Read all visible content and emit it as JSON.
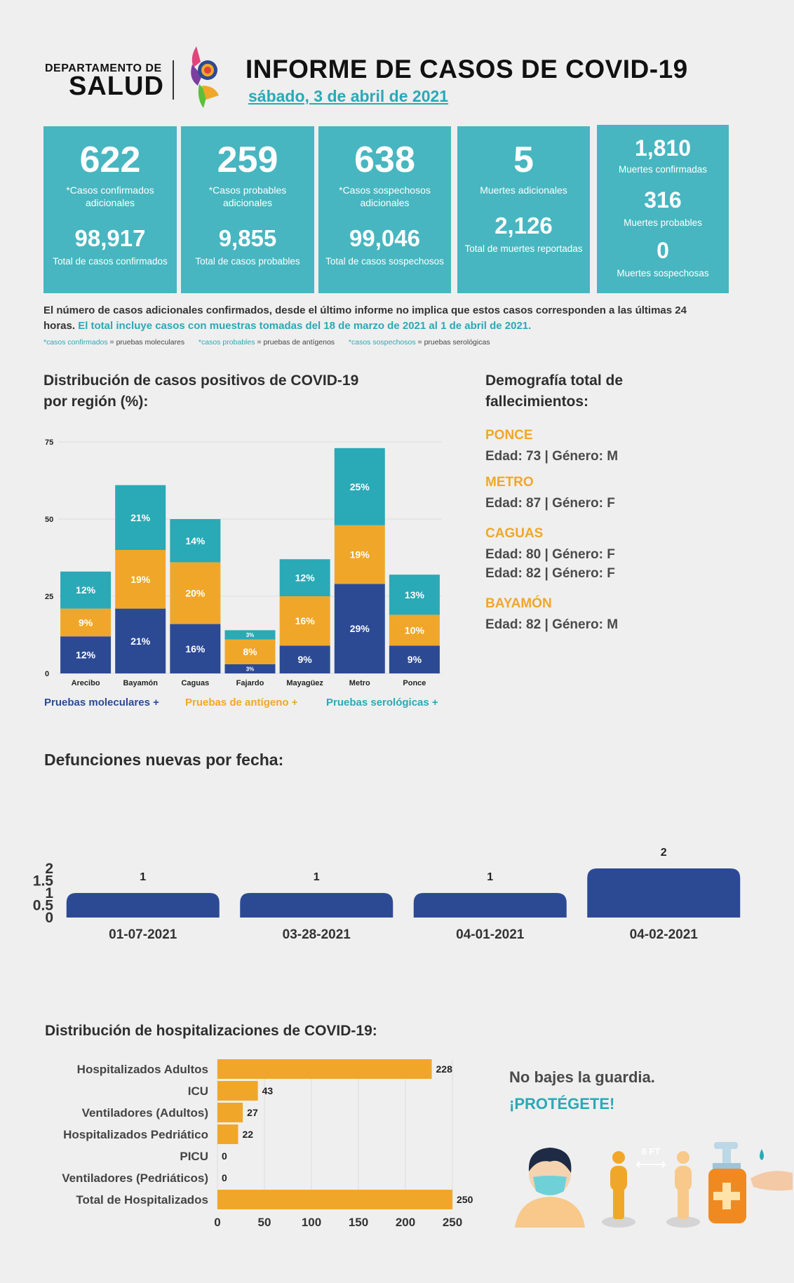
{
  "header": {
    "dept_line1": "DEPARTAMENTO DE",
    "dept_line2": "SALUD",
    "title": "INFORME DE CASOS DE COVID-19",
    "date": "sábado, 3 de abril de 2021"
  },
  "cards": [
    {
      "top_value": "622",
      "top_label": "*Casos confirmados adicionales",
      "bottom_value": "98,917",
      "bottom_label": "Total de casos confirmados"
    },
    {
      "top_value": "259",
      "top_label": "*Casos probables adicionales",
      "bottom_value": "9,855",
      "bottom_label": "Total de casos probables"
    },
    {
      "top_value": "638",
      "top_label": "*Casos sospechosos adicionales",
      "bottom_value": "99,046",
      "bottom_label": "Total de casos sospechosos"
    },
    {
      "top_value": "5",
      "top_label": "Muertes adicionales",
      "bottom_value": "2,126",
      "bottom_label": "Total de muertes reportadas"
    }
  ],
  "deaths_card": [
    {
      "value": "1,810",
      "label": "Muertes confirmadas"
    },
    {
      "value": "316",
      "label": "Muertes probables"
    },
    {
      "value": "0",
      "label": "Muertes sospechosas"
    }
  ],
  "note": {
    "text": "El número de casos adicionales confirmados, desde el último informe no implica que estos casos corresponden a las últimas 24 horas.",
    "highlight": "El total incluye casos con muestras tomadas del 18 de marzo de 2021 al 1 de abril de 2021."
  },
  "legend_note": [
    {
      "key": "*casos confirmados",
      "value": "= pruebas moleculares"
    },
    {
      "key": "*casos probables",
      "value": "= pruebas de antígenos"
    },
    {
      "key": "*casos sospechosos",
      "value": "= pruebas serológicas"
    }
  ],
  "colors": {
    "molecular": "#2c4a94",
    "antigen": "#f0a729",
    "serologic": "#2aa9b6",
    "card": "#47b6c0",
    "hosp": "#f0a729"
  },
  "region_chart": {
    "title_line1": "Distribución de casos positivos de COVID-19",
    "title_line2": "por región (%):",
    "legend": [
      "Pruebas moleculares +",
      "Pruebas de antígeno +",
      "Pruebas serológicas +"
    ]
  },
  "demography": {
    "title_line1": "Demografía total de",
    "title_line2": "fallecimientos:",
    "groups": [
      {
        "region": "PONCE",
        "lines": [
          "Edad: 73 | Género: M"
        ]
      },
      {
        "region": "METRO",
        "lines": [
          "Edad: 87 | Género: F"
        ]
      },
      {
        "region": "CAGUAS",
        "lines": [
          "Edad: 80 | Género: F",
          "Edad: 82 | Género: F"
        ]
      },
      {
        "region": "BAYAMÓN",
        "lines": [
          "Edad: 82 | Género: M"
        ]
      }
    ]
  },
  "deaths_chart": {
    "title": "Defunciones nuevas por fecha:"
  },
  "hosp_chart": {
    "title": "Distribución de hospitalizaciones de COVID-19:"
  },
  "protect": {
    "line1": "No bajes la guardia.",
    "line2": "¡PROTÉGETE!",
    "distance_label": "6 FT"
  },
  "chart_data": [
    {
      "type": "bar",
      "stacked": true,
      "categories": [
        "Arecibo",
        "Bayamón",
        "Caguas",
        "Fajardo",
        "Mayagüez",
        "Metro",
        "Ponce"
      ],
      "series": [
        {
          "name": "Pruebas moleculares +",
          "values": [
            12,
            21,
            16,
            3,
            9,
            29,
            9
          ]
        },
        {
          "name": "Pruebas de antígeno +",
          "values": [
            9,
            19,
            20,
            8,
            16,
            19,
            10
          ]
        },
        {
          "name": "Pruebas serológicas +",
          "values": [
            12,
            21,
            14,
            3,
            12,
            25,
            13
          ]
        }
      ],
      "ylim": [
        0,
        75
      ],
      "yticks": [
        0,
        25,
        50,
        75
      ],
      "legend": "bottom"
    },
    {
      "type": "bar",
      "categories": [
        "01-07-2021",
        "03-28-2021",
        "04-01-2021",
        "04-02-2021"
      ],
      "values": [
        1,
        1,
        1,
        2
      ],
      "ylim": [
        0,
        2
      ],
      "yticks": [
        "0",
        "0.5",
        "1",
        "1.5",
        "2"
      ]
    },
    {
      "type": "bar",
      "orientation": "horizontal",
      "categories": [
        "Hospitalizados Adultos",
        "ICU",
        "Ventiladores (Adultos)",
        "Hospitalizados Pedriático",
        "PICU",
        "Ventiladores (Pedriáticos)",
        "Total de Hospitalizados"
      ],
      "values": [
        228,
        43,
        27,
        22,
        0,
        0,
        250
      ],
      "xlim": [
        0,
        250
      ],
      "xticks": [
        0,
        50,
        100,
        150,
        200,
        250
      ]
    }
  ]
}
